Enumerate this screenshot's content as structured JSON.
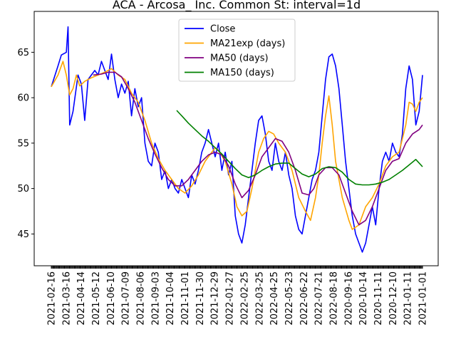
{
  "chart_data": {
    "type": "line",
    "title": "ACA - Arcosa_ Inc. Common St: interval=1d",
    "xlabel": "",
    "ylabel": "",
    "ylim": [
      41.5,
      69.5
    ],
    "yticks": [
      45,
      50,
      55,
      60,
      65
    ],
    "x_tick_labels": [
      "2021-02-16",
      "2021-03-16",
      "2021-04-14",
      "2021-05-12",
      "2021-06-10",
      "2021-07-09",
      "2021-08-06",
      "2021-09-03",
      "2021-10-04",
      "2021-11-01",
      "2021-11-30",
      "2021-12-29",
      "2022-01-27",
      "2022-02-25",
      "2022-03-25",
      "2022-04-25",
      "2022-05-23",
      "2022-06-22",
      "2022-07-21",
      "2022-08-18",
      "2020-09-16",
      "2020-10-14",
      "2020-11-11",
      "2020-12-10",
      "2021-01-11",
      "2021-01-01"
    ],
    "grid": false,
    "legend_position": "upper center",
    "series": [
      {
        "name": "Close",
        "color": "#0000ff",
        "points": [
          [
            0,
            61.2
          ],
          [
            4,
            63.5
          ],
          [
            6,
            64.7
          ],
          [
            9,
            65
          ],
          [
            10,
            67.8
          ],
          [
            11,
            57
          ],
          [
            13,
            58.5
          ],
          [
            16,
            62.5
          ],
          [
            18,
            61.5
          ],
          [
            20,
            57.5
          ],
          [
            22,
            62
          ],
          [
            26,
            63
          ],
          [
            28,
            62.5
          ],
          [
            30,
            64
          ],
          [
            32,
            63
          ],
          [
            34,
            62
          ],
          [
            36,
            64.8
          ],
          [
            38,
            62
          ],
          [
            40,
            60
          ],
          [
            42,
            61.5
          ],
          [
            44,
            60.5
          ],
          [
            46,
            61.8
          ],
          [
            48,
            58
          ],
          [
            50,
            61
          ],
          [
            52,
            59
          ],
          [
            54,
            60
          ],
          [
            56,
            55
          ],
          [
            58,
            53
          ],
          [
            60,
            52.5
          ],
          [
            62,
            55
          ],
          [
            64,
            54
          ],
          [
            66,
            51
          ],
          [
            68,
            52
          ],
          [
            70,
            50
          ],
          [
            72,
            51
          ],
          [
            74,
            50
          ],
          [
            76,
            49.5
          ],
          [
            78,
            51
          ],
          [
            80,
            50
          ],
          [
            82,
            49
          ],
          [
            84,
            51.5
          ],
          [
            86,
            50.5
          ],
          [
            88,
            52
          ],
          [
            90,
            54
          ],
          [
            92,
            55
          ],
          [
            94,
            56.5
          ],
          [
            96,
            55
          ],
          [
            98,
            53.5
          ],
          [
            100,
            55
          ],
          [
            102,
            52
          ],
          [
            104,
            54
          ],
          [
            106,
            51.5
          ],
          [
            108,
            53
          ],
          [
            110,
            47
          ],
          [
            112,
            45
          ],
          [
            114,
            44
          ],
          [
            116,
            46
          ],
          [
            118,
            49
          ],
          [
            120,
            52
          ],
          [
            122,
            55
          ],
          [
            124,
            57.5
          ],
          [
            126,
            58
          ],
          [
            128,
            56
          ],
          [
            130,
            53
          ],
          [
            132,
            52
          ],
          [
            134,
            55
          ],
          [
            136,
            53
          ],
          [
            138,
            52
          ],
          [
            140,
            54
          ],
          [
            142,
            51.5
          ],
          [
            144,
            50
          ],
          [
            146,
            47
          ],
          [
            148,
            45.5
          ],
          [
            150,
            45
          ],
          [
            152,
            47
          ],
          [
            154,
            49
          ],
          [
            156,
            51
          ],
          [
            158,
            52
          ],
          [
            160,
            54
          ],
          [
            162,
            58
          ],
          [
            164,
            62
          ],
          [
            166,
            64.5
          ],
          [
            168,
            64.8
          ],
          [
            170,
            63.5
          ],
          [
            172,
            61
          ],
          [
            174,
            57
          ],
          [
            176,
            53
          ],
          [
            178,
            50
          ],
          [
            180,
            47
          ],
          [
            182,
            45
          ],
          [
            184,
            44
          ],
          [
            186,
            43
          ],
          [
            188,
            44
          ],
          [
            190,
            46
          ],
          [
            192,
            48
          ],
          [
            194,
            46
          ],
          [
            196,
            50
          ],
          [
            198,
            53
          ],
          [
            200,
            54
          ],
          [
            202,
            53
          ],
          [
            204,
            55
          ],
          [
            206,
            54
          ],
          [
            208,
            53.5
          ],
          [
            210,
            56
          ],
          [
            212,
            61
          ],
          [
            214,
            63.5
          ],
          [
            216,
            62
          ],
          [
            218,
            57
          ],
          [
            220,
            58.5
          ],
          [
            222,
            62.5
          ]
        ]
      },
      {
        "name": "MA21exp (days)",
        "color": "#ffa500",
        "points": [
          [
            0,
            61.2
          ],
          [
            4,
            62.5
          ],
          [
            7,
            64
          ],
          [
            9,
            62.5
          ],
          [
            11,
            60.3
          ],
          [
            13,
            61
          ],
          [
            15,
            62.5
          ],
          [
            17,
            61.3
          ],
          [
            20,
            61.8
          ],
          [
            24,
            62.2
          ],
          [
            28,
            62.5
          ],
          [
            32,
            62.8
          ],
          [
            36,
            63.2
          ],
          [
            40,
            62.5
          ],
          [
            44,
            62
          ],
          [
            48,
            60.5
          ],
          [
            52,
            59.5
          ],
          [
            56,
            57.5
          ],
          [
            60,
            55
          ],
          [
            64,
            53.3
          ],
          [
            68,
            52
          ],
          [
            72,
            51
          ],
          [
            76,
            50
          ],
          [
            80,
            49.5
          ],
          [
            84,
            50.3
          ],
          [
            88,
            51.5
          ],
          [
            92,
            53
          ],
          [
            96,
            54
          ],
          [
            98,
            54.5
          ],
          [
            100,
            54.2
          ],
          [
            104,
            53
          ],
          [
            108,
            50.5
          ],
          [
            111,
            48
          ],
          [
            114,
            47
          ],
          [
            117,
            47.5
          ],
          [
            120,
            50
          ],
          [
            124,
            54
          ],
          [
            127,
            55.5
          ],
          [
            130,
            56.3
          ],
          [
            133,
            56
          ],
          [
            136,
            55
          ],
          [
            140,
            54
          ],
          [
            144,
            52
          ],
          [
            148,
            49
          ],
          [
            152,
            47.5
          ],
          [
            155,
            46.5
          ],
          [
            158,
            49
          ],
          [
            160,
            51.5
          ],
          [
            162,
            55
          ],
          [
            164,
            58
          ],
          [
            166,
            60.2
          ],
          [
            168,
            57
          ],
          [
            170,
            53
          ],
          [
            174,
            49
          ],
          [
            178,
            46.5
          ],
          [
            180,
            45.5
          ],
          [
            184,
            46
          ],
          [
            188,
            48
          ],
          [
            192,
            49
          ],
          [
            196,
            50.5
          ],
          [
            200,
            52.5
          ],
          [
            204,
            53.5
          ],
          [
            208,
            54
          ],
          [
            212,
            57
          ],
          [
            214,
            59.5
          ],
          [
            216,
            59.3
          ],
          [
            218,
            58.5
          ],
          [
            220,
            59.5
          ],
          [
            222,
            60
          ]
        ]
      },
      {
        "name": "MA50 (days)",
        "color": "#800080",
        "points": [
          [
            25,
            62.5
          ],
          [
            30,
            62.6
          ],
          [
            34,
            62.8
          ],
          [
            38,
            62.8
          ],
          [
            42,
            62.3
          ],
          [
            46,
            61
          ],
          [
            50,
            59.5
          ],
          [
            54,
            57.5
          ],
          [
            58,
            55.5
          ],
          [
            62,
            53.8
          ],
          [
            66,
            52.3
          ],
          [
            70,
            51
          ],
          [
            74,
            50.3
          ],
          [
            78,
            50.3
          ],
          [
            82,
            51
          ],
          [
            86,
            52
          ],
          [
            90,
            53
          ],
          [
            94,
            53.7
          ],
          [
            98,
            54
          ],
          [
            102,
            53.7
          ],
          [
            106,
            52.5
          ],
          [
            110,
            50.5
          ],
          [
            114,
            49
          ],
          [
            118,
            49.8
          ],
          [
            122,
            51.5
          ],
          [
            126,
            53.5
          ],
          [
            130,
            54.5
          ],
          [
            134,
            55.5
          ],
          [
            138,
            55.2
          ],
          [
            142,
            54
          ],
          [
            146,
            52
          ],
          [
            150,
            49.5
          ],
          [
            154,
            49.3
          ],
          [
            157,
            50
          ],
          [
            160,
            51.5
          ],
          [
            164,
            52.3
          ],
          [
            168,
            52.3
          ],
          [
            172,
            51.5
          ],
          [
            176,
            49.5
          ],
          [
            180,
            47.5
          ],
          [
            184,
            46
          ],
          [
            188,
            46.5
          ],
          [
            192,
            48
          ],
          [
            196,
            50
          ],
          [
            200,
            52
          ],
          [
            204,
            53
          ],
          [
            208,
            53.3
          ],
          [
            212,
            55
          ],
          [
            216,
            56
          ],
          [
            220,
            56.5
          ],
          [
            222,
            57
          ]
        ]
      },
      {
        "name": "MA150 (days)",
        "color": "#008000",
        "points": [
          [
            75,
            58.6
          ],
          [
            78,
            58
          ],
          [
            82,
            57.2
          ],
          [
            86,
            56.5
          ],
          [
            90,
            55.8
          ],
          [
            94,
            55.2
          ],
          [
            98,
            54.5
          ],
          [
            102,
            53.8
          ],
          [
            106,
            53
          ],
          [
            110,
            52.2
          ],
          [
            114,
            51.5
          ],
          [
            118,
            51.2
          ],
          [
            122,
            51.5
          ],
          [
            126,
            52
          ],
          [
            130,
            52.4
          ],
          [
            134,
            52.7
          ],
          [
            138,
            52.8
          ],
          [
            142,
            52.8
          ],
          [
            146,
            52.2
          ],
          [
            150,
            51.6
          ],
          [
            154,
            51.3
          ],
          [
            158,
            51.6
          ],
          [
            162,
            52.2
          ],
          [
            166,
            52.4
          ],
          [
            170,
            52.3
          ],
          [
            174,
            51.8
          ],
          [
            178,
            51
          ],
          [
            182,
            50.5
          ],
          [
            186,
            50.4
          ],
          [
            190,
            50.4
          ],
          [
            194,
            50.5
          ],
          [
            198,
            50.7
          ],
          [
            202,
            51
          ],
          [
            206,
            51.5
          ],
          [
            210,
            52
          ],
          [
            214,
            52.6
          ],
          [
            218,
            53.2
          ],
          [
            222,
            52.4
          ]
        ]
      }
    ]
  }
}
